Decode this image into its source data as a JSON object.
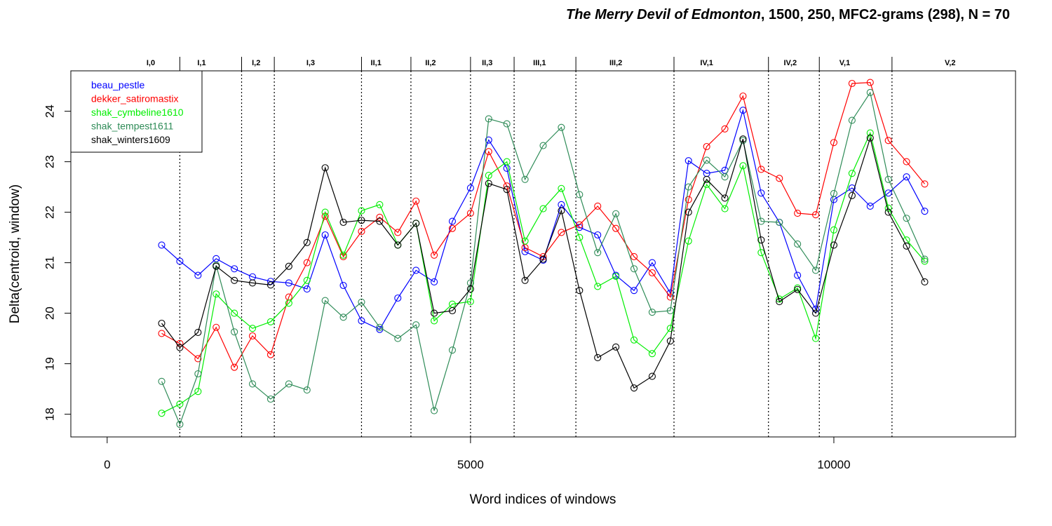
{
  "title": {
    "italic": "The Merry Devil of Edmonton",
    "rest": ", 1500, 250, MFC2-grams (298), N = 70"
  },
  "chart_data": {
    "type": "line",
    "xlabel": "Word indices of windows",
    "ylabel": "Delta(centroid, window)",
    "xlim": [
      -500,
      12500
    ],
    "ylim": [
      17.55,
      24.8
    ],
    "xticks": [
      0,
      5000,
      10000
    ],
    "yticks": [
      18,
      19,
      20,
      21,
      22,
      23,
      24
    ],
    "act_boundaries": [
      1000,
      1850,
      2300,
      3500,
      4180,
      5000,
      5600,
      6450,
      7800,
      9100,
      9800,
      10800
    ],
    "act_labels": [
      {
        "label": "I,0",
        "x": 600
      },
      {
        "label": "I,1",
        "x": 1300
      },
      {
        "label": "I,2",
        "x": 2050
      },
      {
        "label": "I,3",
        "x": 2800
      },
      {
        "label": "II,1",
        "x": 3700
      },
      {
        "label": "II,2",
        "x": 4450
      },
      {
        "label": "II,3",
        "x": 5230
      },
      {
        "label": "III,1",
        "x": 5950
      },
      {
        "label": "III,2",
        "x": 7000
      },
      {
        "label": "IV,1",
        "x": 8250
      },
      {
        "label": "IV,2",
        "x": 9400
      },
      {
        "label": "V,1",
        "x": 10150
      },
      {
        "label": "V,2",
        "x": 11600
      }
    ],
    "x": [
      750,
      1000,
      1250,
      1500,
      1750,
      2000,
      2250,
      2500,
      2750,
      3000,
      3250,
      3500,
      3750,
      4000,
      4250,
      4500,
      4750,
      5000,
      5250,
      5500,
      5750,
      6000,
      6250,
      6500,
      6750,
      7000,
      7250,
      7500,
      7750,
      8000,
      8250,
      8500,
      8750,
      9000,
      9250,
      9500,
      9750,
      10000,
      10250,
      10500,
      10750,
      11000,
      11250
    ],
    "series": [
      {
        "name": "beau_pestle",
        "color": "#0000ff",
        "values": [
          21.35,
          21.03,
          20.75,
          21.08,
          20.88,
          20.72,
          20.63,
          20.6,
          20.48,
          21.55,
          20.55,
          19.85,
          19.68,
          20.3,
          20.85,
          20.62,
          21.82,
          22.48,
          23.43,
          22.87,
          21.22,
          21.05,
          22.15,
          21.7,
          21.55,
          20.75,
          20.45,
          21.0,
          20.4,
          23.02,
          22.77,
          22.83,
          24.02,
          22.38,
          21.8,
          20.75,
          20.08,
          22.25,
          22.48,
          22.12,
          22.38,
          22.7,
          22.02
        ]
      },
      {
        "name": "dekker_satiromastix",
        "color": "#ff0000",
        "values": [
          19.6,
          19.4,
          19.1,
          19.72,
          18.93,
          19.55,
          19.18,
          20.32,
          21.0,
          21.92,
          21.12,
          21.62,
          21.9,
          21.6,
          22.22,
          21.15,
          21.68,
          21.98,
          23.2,
          22.52,
          21.3,
          21.12,
          21.6,
          21.75,
          22.12,
          21.68,
          21.12,
          20.8,
          20.32,
          22.25,
          23.3,
          23.65,
          24.3,
          22.85,
          22.67,
          21.98,
          21.95,
          23.38,
          24.55,
          24.57,
          23.42,
          23.0,
          22.56
        ]
      },
      {
        "name": "shak_cymbeline1610",
        "color": "#00ee00",
        "values": [
          18.02,
          18.2,
          18.45,
          20.38,
          20.0,
          19.7,
          19.83,
          20.2,
          20.65,
          22.0,
          21.15,
          22.03,
          22.15,
          21.35,
          21.78,
          19.85,
          20.18,
          20.23,
          22.73,
          23.0,
          21.43,
          22.07,
          22.47,
          21.5,
          20.53,
          20.73,
          19.47,
          19.2,
          19.7,
          21.43,
          22.55,
          22.07,
          22.92,
          21.2,
          20.28,
          20.5,
          19.5,
          21.65,
          22.77,
          23.57,
          22.08,
          21.45,
          21.03
        ]
      },
      {
        "name": "shak_tempest1611",
        "color": "#2e8b57",
        "values": [
          18.65,
          17.8,
          18.8,
          20.95,
          19.63,
          18.6,
          18.3,
          18.6,
          18.48,
          20.25,
          19.92,
          20.22,
          19.72,
          19.5,
          19.77,
          18.07,
          19.27,
          20.6,
          23.85,
          23.75,
          22.65,
          23.32,
          23.68,
          22.35,
          21.2,
          21.97,
          20.88,
          20.02,
          20.05,
          22.5,
          23.03,
          22.7,
          23.42,
          21.82,
          21.8,
          21.37,
          20.85,
          22.37,
          23.82,
          24.37,
          22.65,
          21.88,
          21.07
        ]
      },
      {
        "name": "shak_winters1609",
        "color": "#000000",
        "values": [
          19.8,
          19.32,
          19.62,
          20.93,
          20.65,
          20.6,
          20.56,
          20.93,
          21.4,
          22.88,
          21.8,
          21.84,
          21.82,
          21.35,
          21.78,
          20.0,
          20.05,
          20.48,
          22.57,
          22.45,
          20.65,
          21.07,
          22.03,
          20.45,
          19.12,
          19.33,
          18.52,
          18.75,
          19.45,
          22.0,
          22.65,
          22.28,
          23.45,
          21.45,
          20.23,
          20.47,
          20.0,
          21.35,
          22.33,
          23.47,
          22.0,
          21.33,
          20.62
        ]
      }
    ],
    "legend_position": "top-left",
    "grid": false
  }
}
